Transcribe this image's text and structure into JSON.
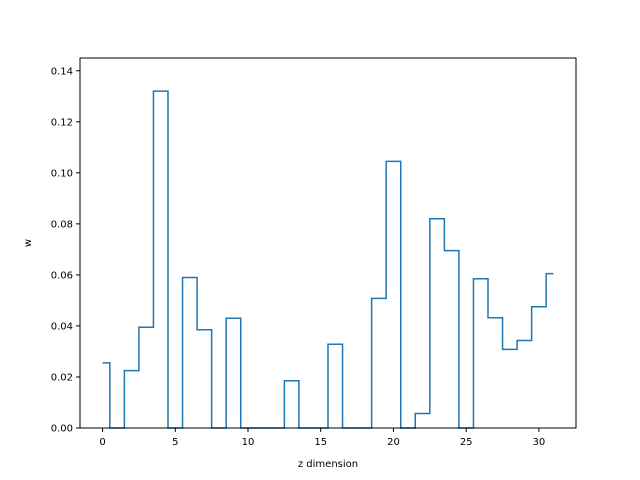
{
  "chart_data": {
    "type": "line",
    "title": "",
    "xlabel": "z dimension",
    "ylabel": "w",
    "xlim": [
      -1.55,
      32.55
    ],
    "ylim": [
      0,
      0.145
    ],
    "x_ticks": [
      0,
      5,
      10,
      15,
      20,
      25,
      30
    ],
    "x_tick_labels": [
      "0",
      "5",
      "10",
      "15",
      "20",
      "25",
      "30"
    ],
    "y_ticks": [
      0,
      0.02,
      0.04,
      0.06,
      0.08,
      0.1,
      0.12,
      0.14
    ],
    "y_tick_labels": [
      "0.00",
      "0.02",
      "0.04",
      "0.06",
      "0.08",
      "0.10",
      "0.12",
      "0.14"
    ],
    "grid": false,
    "series": [
      {
        "color": "#1f77b4",
        "drawstyle": "steps-mid",
        "x": [
          0,
          1,
          2,
          3,
          4,
          5,
          6,
          7,
          8,
          9,
          10,
          11,
          12,
          13,
          14,
          15,
          16,
          17,
          18,
          19,
          20,
          21,
          22,
          23,
          24,
          25,
          26,
          27,
          28,
          29,
          30,
          31
        ],
        "values": [
          0.0255,
          0.0,
          0.0225,
          0.0395,
          0.132,
          0.0,
          0.059,
          0.0385,
          0.0,
          0.043,
          0.0,
          0.0,
          0.0,
          0.0185,
          0.0,
          0.0,
          0.0328,
          0.0,
          0.0,
          0.0508,
          0.1045,
          0.0,
          0.0057,
          0.082,
          0.0695,
          0.0,
          0.0585,
          0.0432,
          0.0308,
          0.0343,
          0.0475,
          0.0605
        ]
      }
    ]
  }
}
